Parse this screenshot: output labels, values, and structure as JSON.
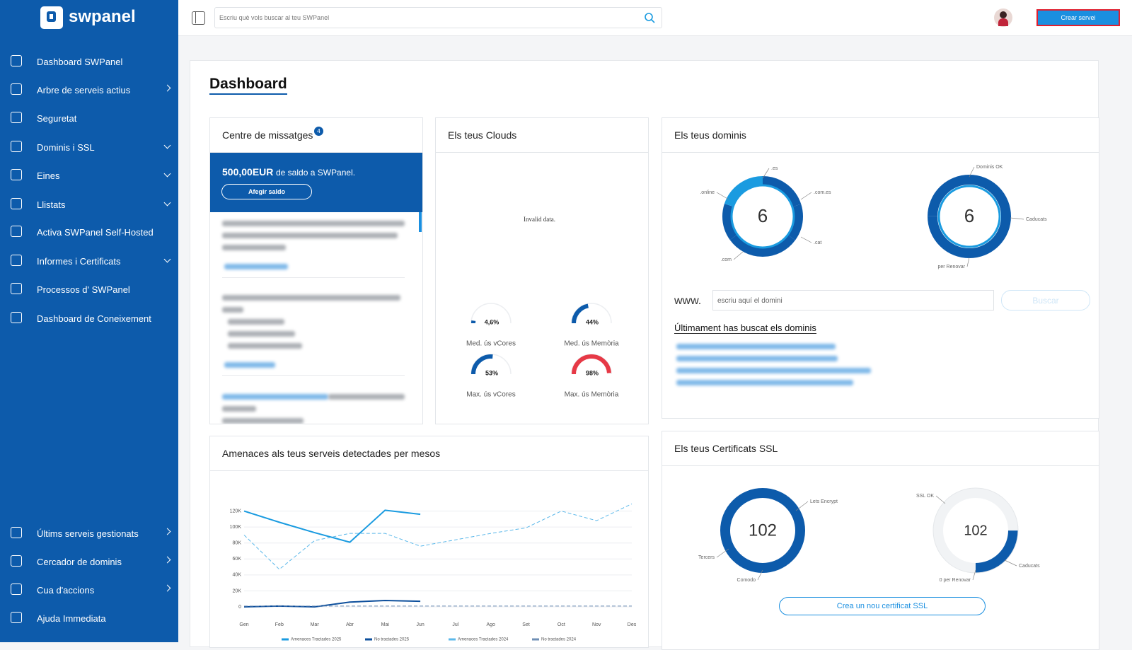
{
  "sidebar": {
    "brand": "swpanel",
    "menu": [
      "Dashboard SWPanel",
      "Arbre de serveis actius",
      "Seguretat",
      "Dominis i SSL",
      "Eines",
      "Llistats",
      "Activa SWPanel Self-Hosted",
      "Informes i Certificats",
      "Processos d' SWPanel",
      "Dashboard de Coneixement"
    ],
    "bottom_menu": [
      "Últims serveis gestionats",
      "Cercador de dominis",
      "Cua d'accions",
      "Ajuda Immediata"
    ]
  },
  "topbar": {
    "search_placeholder": "Escriu què vols buscar al teu SWPanel",
    "button": "Crear servei"
  },
  "page_title": "Dashboard",
  "messages": {
    "title": "Centre de missatges",
    "badge": 4,
    "balance_amount": "500,00EUR",
    "balance_text": "de saldo a SWPanel.",
    "button": "Afegir saldo"
  },
  "clouds": {
    "title": "Els teus Clouds",
    "note": "Invalid data.",
    "gauges": [
      {
        "label": "Med. ús vCores",
        "value": 4.6,
        "value_label": "4,6%",
        "color": "#0d5bab"
      },
      {
        "label": "Med. ús Memòria",
        "value": 44,
        "value_label": "44%",
        "color": "#0d5bab"
      },
      {
        "label": "Max. ús vCores",
        "value": 53,
        "value_label": "53%",
        "color": "#0d5bab"
      },
      {
        "label": "Max. ús Memòria",
        "value": 98,
        "value_label": "98%",
        "color": "#e63946"
      }
    ]
  },
  "domains": {
    "title": "Els teus dominis",
    "donuts": [
      {
        "total": 6,
        "labels": [
          ".es",
          ".com.es",
          ".cat",
          ".com",
          ".online"
        ]
      },
      {
        "total": 6,
        "labels": [
          "Dominis OK",
          "Caducats",
          "per Renovar"
        ]
      }
    ],
    "www": "www.",
    "input_placeholder": "escriu aquí el domini",
    "button": "Buscar",
    "recent_title": "Últimament has buscat els dominis"
  },
  "threats": {
    "title": "Amenaces als teus serveis detectades per mesos",
    "chart_data": {
      "type": "line",
      "categories": [
        "Gen",
        "Feb",
        "Mar",
        "Abr",
        "Mai",
        "Jun",
        "Jul",
        "Ago",
        "Set",
        "Oct",
        "Nov",
        "Des"
      ],
      "series": [
        {
          "name": "Amenaces Tractades 2025",
          "color": "#1a9be0",
          "dashed": false,
          "values": [
            120000,
            106000,
            93000,
            81000,
            121000,
            116000,
            null,
            null,
            null,
            null,
            null,
            null
          ]
        },
        {
          "name": "No tractades 2025",
          "color": "#0d4f9c",
          "dashed": false,
          "values": [
            0,
            1000,
            0,
            6000,
            8000,
            7000,
            null,
            null,
            null,
            null,
            null,
            null
          ]
        },
        {
          "name": "Amenaces Tractades 2024",
          "color": "#5bb8ea",
          "dashed": true,
          "values": [
            90000,
            47000,
            83000,
            92000,
            92000,
            76000,
            84000,
            92000,
            99000,
            120000,
            108000,
            129000
          ]
        },
        {
          "name": "No tractades 2024",
          "color": "#6f8fb5",
          "dashed": true,
          "values": [
            1000,
            1000,
            1000,
            1000,
            1000,
            1000,
            1000,
            1000,
            1000,
            1000,
            1000,
            1000
          ]
        }
      ],
      "ylim": [
        0,
        140000
      ],
      "yticks": [
        0,
        {
          "value": 20000,
          "label": "20K"
        },
        {
          "value": 40000,
          "label": "40K"
        },
        {
          "value": 60000,
          "label": "60K"
        },
        {
          "value": 80000,
          "label": "80K"
        },
        {
          "value": 100000,
          "label": "100K"
        },
        {
          "value": 120000,
          "label": "120K"
        }
      ],
      "grid": true
    }
  },
  "ssl": {
    "title": "Els teus Certificats SSL",
    "donuts": [
      {
        "total": 102,
        "labels": [
          "Lets Encrypt",
          "Tercers",
          "Comodo"
        ]
      },
      {
        "total": 102,
        "labels": [
          "SSL OK",
          "Caducats",
          "0 per Renovar"
        ]
      }
    ],
    "button": "Crea un nou certificat SSL"
  }
}
